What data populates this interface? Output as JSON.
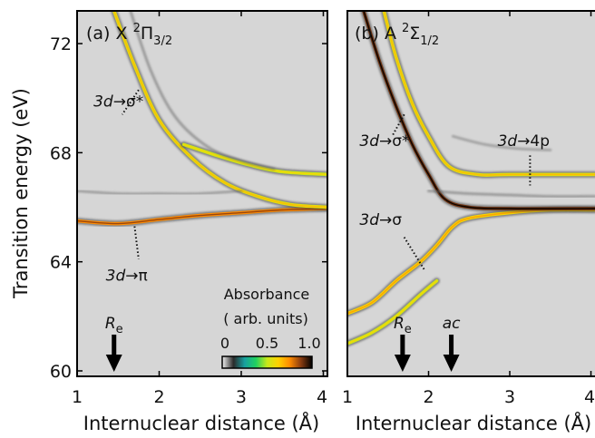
{
  "chart_data": [
    {
      "type": "heatmap",
      "panel_label": "(a)",
      "state": {
        "letter": "X",
        "sup": "2",
        "sym": "Π",
        "sub": "3/2"
      },
      "xlabel": "Internuclear distance (Å)",
      "ylabel": "Transition energy (eV)",
      "xlim": [
        1.0,
        4.05
      ],
      "ylim": [
        59.8,
        73.2
      ],
      "xticks": [
        "1",
        "2",
        "3",
        "4"
      ],
      "xtick_values": [
        1,
        2,
        3,
        4
      ],
      "yticks": [
        "60",
        "64",
        "68",
        "72"
      ],
      "ytick_values": [
        60,
        64,
        68,
        72
      ],
      "annotations": [
        {
          "italic": "3d",
          "rest": "→σ*",
          "x": 1.2,
          "y": 69.7,
          "leader_from": [
            1.75,
            70.3
          ],
          "leader_to": [
            1.55,
            69.4
          ]
        },
        {
          "italic": "3d",
          "rest": "→π",
          "x": 1.35,
          "y": 63.3,
          "leader_from": [
            1.7,
            65.3
          ],
          "leader_to": [
            1.75,
            64.1
          ]
        }
      ],
      "marker": {
        "label": "R",
        "sub": "e",
        "x": 1.45
      },
      "series": [
        {
          "points": [
            [
              1.0,
              65.5
            ],
            [
              1.5,
              65.4
            ],
            [
              2.0,
              65.55
            ],
            [
              2.5,
              65.7
            ],
            [
              3.0,
              65.8
            ],
            [
              3.5,
              65.9
            ],
            [
              4.05,
              65.95
            ]
          ],
          "intensity": 0.75
        },
        {
          "points": [
            [
              1.45,
              73.2
            ],
            [
              1.7,
              71.2
            ],
            [
              2.0,
              69.2
            ],
            [
              2.4,
              67.8
            ],
            [
              2.8,
              66.9
            ],
            [
              3.2,
              66.4
            ],
            [
              3.6,
              66.1
            ],
            [
              4.05,
              66.0
            ]
          ],
          "intensity": 0.55
        },
        {
          "points": [
            [
              2.3,
              68.3
            ],
            [
              2.7,
              67.9
            ],
            [
              3.1,
              67.55
            ],
            [
              3.5,
              67.3
            ],
            [
              4.05,
              67.2
            ]
          ],
          "intensity": 0.5
        },
        {
          "points": [
            [
              1.65,
              73.2
            ],
            [
              1.9,
              71.0
            ],
            [
              2.2,
              69.3
            ],
            [
              2.6,
              68.2
            ],
            [
              3.0,
              67.7
            ],
            [
              3.4,
              67.4
            ]
          ],
          "intensity": 0.2
        },
        {
          "points": [
            [
              1.0,
              66.6
            ],
            [
              1.5,
              66.5
            ],
            [
              2.0,
              66.5
            ],
            [
              2.5,
              66.5
            ],
            [
              3.0,
              66.6
            ]
          ],
          "intensity": 0.15
        }
      ]
    },
    {
      "type": "heatmap",
      "panel_label": "(b)",
      "state": {
        "letter": "A",
        "sup": "2",
        "sym": "Σ",
        "sub": "1/2"
      },
      "xlabel": "Internuclear distance (Å)",
      "ylabel": "",
      "xlim": [
        1.0,
        4.05
      ],
      "ylim": [
        59.8,
        73.2
      ],
      "xticks": [
        "1",
        "2",
        "3",
        "4"
      ],
      "xtick_values": [
        1,
        2,
        3,
        4
      ],
      "yticks": [],
      "ytick_values": [],
      "annotations": [
        {
          "italic": "3d",
          "rest": "→σ*",
          "x": 1.15,
          "y": 68.25,
          "leader_from": [
            1.7,
            69.4
          ],
          "leader_to": [
            1.55,
            68.6
          ]
        },
        {
          "italic": "3d",
          "rest": "→4p",
          "x": 2.85,
          "y": 68.25,
          "leader_from": [
            3.25,
            67.9
          ],
          "leader_to": [
            3.25,
            66.8
          ]
        },
        {
          "italic": "3d",
          "rest": "→σ",
          "x": 1.15,
          "y": 65.35,
          "leader_from": [
            1.7,
            64.9
          ],
          "leader_to": [
            1.95,
            63.7
          ]
        }
      ],
      "markers": [
        {
          "label": "R",
          "sub": "e",
          "x": 1.68,
          "italic": false
        },
        {
          "label": "ac",
          "sub": "",
          "x": 2.28,
          "italic": true
        }
      ],
      "series": [
        {
          "points": [
            [
              1.0,
              62.1
            ],
            [
              1.3,
              62.5
            ],
            [
              1.6,
              63.3
            ],
            [
              1.9,
              64.0
            ],
            [
              2.1,
              64.6
            ],
            [
              2.3,
              65.3
            ],
            [
              2.5,
              65.6
            ],
            [
              3.0,
              65.8
            ],
            [
              3.5,
              65.9
            ],
            [
              4.05,
              65.9
            ]
          ],
          "intensity": 0.6
        },
        {
          "points": [
            [
              1.0,
              61.0
            ],
            [
              1.3,
              61.4
            ],
            [
              1.6,
              62.0
            ],
            [
              1.9,
              62.8
            ],
            [
              2.1,
              63.3
            ]
          ],
          "intensity": 0.5
        },
        {
          "points": [
            [
              1.45,
              73.2
            ],
            [
              1.6,
              71.5
            ],
            [
              1.8,
              69.8
            ],
            [
              2.0,
              68.6
            ],
            [
              2.25,
              67.5
            ],
            [
              2.6,
              67.2
            ],
            [
              3.0,
              67.2
            ],
            [
              4.05,
              67.2
            ]
          ],
          "intensity": 0.55
        },
        {
          "points": [
            [
              1.2,
              73.2
            ],
            [
              1.4,
              71.3
            ],
            [
              1.6,
              69.7
            ],
            [
              1.8,
              68.3
            ],
            [
              2.0,
              67.2
            ],
            [
              2.2,
              66.3
            ],
            [
              2.5,
              66.0
            ],
            [
              3.0,
              65.95
            ],
            [
              4.05,
              65.95
            ]
          ],
          "intensity": 0.9
        },
        {
          "points": [
            [
              2.0,
              66.6
            ],
            [
              2.5,
              66.5
            ],
            [
              3.0,
              66.45
            ],
            [
              3.5,
              66.4
            ],
            [
              4.05,
              66.4
            ]
          ],
          "intensity": 0.2
        },
        {
          "points": [
            [
              2.3,
              68.6
            ],
            [
              2.7,
              68.3
            ],
            [
              3.1,
              68.15
            ],
            [
              3.5,
              68.1
            ]
          ],
          "intensity": 0.12
        }
      ]
    }
  ],
  "colorbar": {
    "title": "Absorbance",
    "subtitle": "( arb. units)",
    "ticks": [
      "0",
      "0.5",
      "1.0"
    ],
    "tick_values": [
      0,
      0.5,
      1.0
    ],
    "colors": [
      "#f2f2f2",
      "#2a2a2a",
      "#18a0a0",
      "#20d060",
      "#c8e81a",
      "#ffd200",
      "#ff8c00",
      "#8a3c10",
      "#000000"
    ]
  },
  "colors": {
    "background": "#d6d6d6",
    "axis": "#000000"
  }
}
